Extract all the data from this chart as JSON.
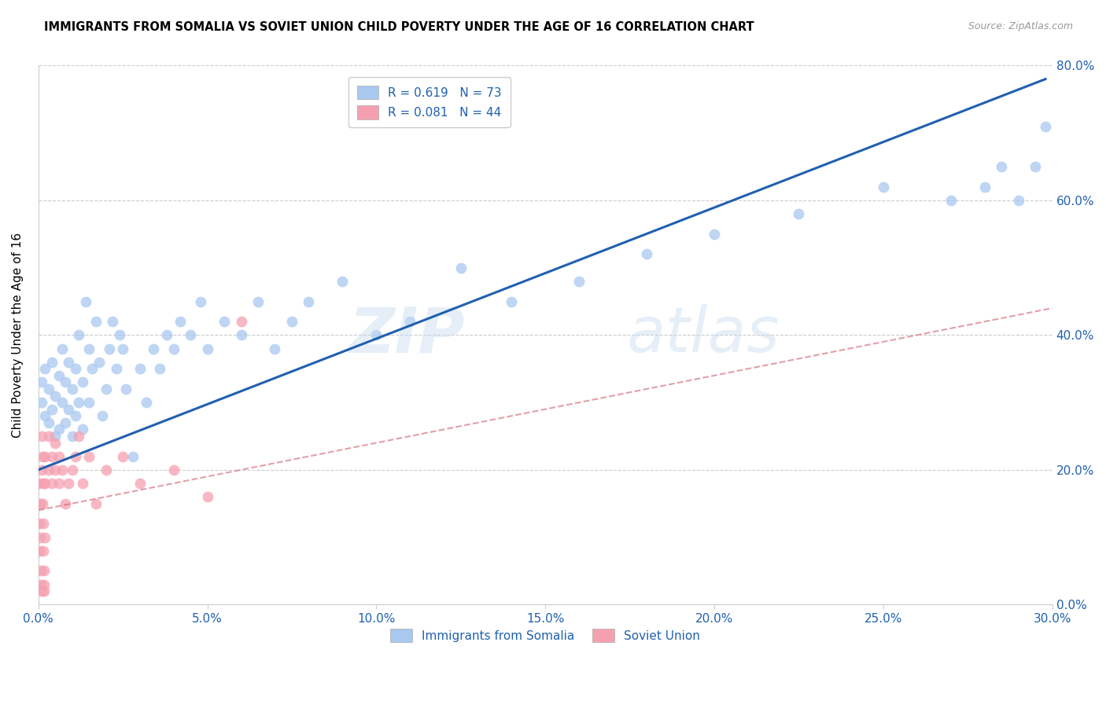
{
  "title": "IMMIGRANTS FROM SOMALIA VS SOVIET UNION CHILD POVERTY UNDER THE AGE OF 16 CORRELATION CHART",
  "source": "Source: ZipAtlas.com",
  "ylabel_label": "Child Poverty Under the Age of 16",
  "somalia_color": "#a8c8f0",
  "soviet_color": "#f5a0b0",
  "somalia_line_color": "#2060b0",
  "soviet_line_color": "#d06070",
  "somalia_scatter_x": [
    0.001,
    0.001,
    0.002,
    0.002,
    0.003,
    0.003,
    0.004,
    0.004,
    0.005,
    0.005,
    0.006,
    0.006,
    0.007,
    0.007,
    0.008,
    0.008,
    0.009,
    0.009,
    0.01,
    0.01,
    0.011,
    0.011,
    0.012,
    0.012,
    0.013,
    0.013,
    0.014,
    0.015,
    0.015,
    0.016,
    0.017,
    0.018,
    0.019,
    0.02,
    0.021,
    0.022,
    0.023,
    0.024,
    0.025,
    0.026,
    0.028,
    0.03,
    0.032,
    0.034,
    0.036,
    0.038,
    0.04,
    0.042,
    0.045,
    0.048,
    0.05,
    0.055,
    0.06,
    0.065,
    0.07,
    0.075,
    0.08,
    0.09,
    0.1,
    0.11,
    0.125,
    0.14,
    0.16,
    0.18,
    0.2,
    0.225,
    0.25,
    0.27,
    0.28,
    0.285,
    0.29,
    0.295,
    0.298
  ],
  "somalia_scatter_y": [
    0.3,
    0.33,
    0.28,
    0.35,
    0.32,
    0.27,
    0.36,
    0.29,
    0.31,
    0.25,
    0.34,
    0.26,
    0.38,
    0.3,
    0.27,
    0.33,
    0.29,
    0.36,
    0.32,
    0.25,
    0.28,
    0.35,
    0.3,
    0.4,
    0.33,
    0.26,
    0.45,
    0.38,
    0.3,
    0.35,
    0.42,
    0.36,
    0.28,
    0.32,
    0.38,
    0.42,
    0.35,
    0.4,
    0.38,
    0.32,
    0.22,
    0.35,
    0.3,
    0.38,
    0.35,
    0.4,
    0.38,
    0.42,
    0.4,
    0.45,
    0.38,
    0.42,
    0.4,
    0.45,
    0.38,
    0.42,
    0.45,
    0.48,
    0.4,
    0.42,
    0.5,
    0.45,
    0.48,
    0.52,
    0.55,
    0.58,
    0.62,
    0.6,
    0.62,
    0.65,
    0.6,
    0.65,
    0.71
  ],
  "soviet_scatter_x": [
    0.0002,
    0.0003,
    0.0004,
    0.0005,
    0.0006,
    0.0007,
    0.0008,
    0.0009,
    0.001,
    0.001,
    0.0012,
    0.0013,
    0.0014,
    0.0015,
    0.0015,
    0.0016,
    0.0017,
    0.0018,
    0.002,
    0.002,
    0.002,
    0.003,
    0.003,
    0.004,
    0.004,
    0.005,
    0.005,
    0.006,
    0.006,
    0.007,
    0.008,
    0.009,
    0.01,
    0.011,
    0.012,
    0.013,
    0.015,
    0.017,
    0.02,
    0.025,
    0.03,
    0.04,
    0.05,
    0.06
  ],
  "soviet_scatter_y": [
    0.18,
    0.12,
    0.08,
    0.15,
    0.1,
    0.05,
    0.03,
    0.02,
    0.2,
    0.25,
    0.15,
    0.22,
    0.18,
    0.12,
    0.08,
    0.05,
    0.03,
    0.02,
    0.22,
    0.18,
    0.1,
    0.25,
    0.2,
    0.22,
    0.18,
    0.24,
    0.2,
    0.22,
    0.18,
    0.2,
    0.15,
    0.18,
    0.2,
    0.22,
    0.25,
    0.18,
    0.22,
    0.15,
    0.2,
    0.22,
    0.18,
    0.2,
    0.16,
    0.42
  ],
  "xlim": [
    0.0,
    0.3
  ],
  "ylim": [
    0.0,
    0.8
  ],
  "somalia_line_x": [
    0.0,
    0.298
  ],
  "somalia_line_y": [
    0.2,
    0.78
  ],
  "soviet_line_x": [
    0.0,
    0.3
  ],
  "soviet_line_y": [
    0.14,
    0.44
  ]
}
